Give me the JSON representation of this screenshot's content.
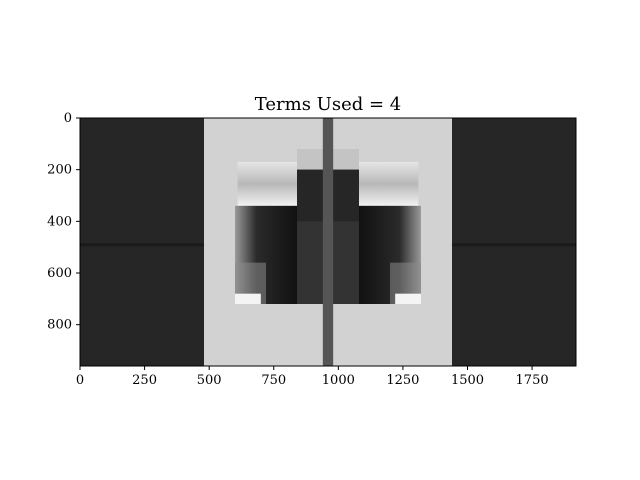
{
  "chart_data": {
    "type": "heatmap",
    "title": "Terms Used = 4",
    "xlabel": "",
    "ylabel": "",
    "xlim": [
      0,
      1920
    ],
    "ylim": [
      960,
      0
    ],
    "xticks": [
      0,
      250,
      500,
      750,
      1000,
      1250,
      1500,
      1750
    ],
    "yticks": [
      0,
      200,
      400,
      600,
      800
    ],
    "colormap": "gray",
    "grid": false,
    "regions": [
      {
        "name": "left-dark-band",
        "x": [
          0,
          480
        ],
        "y": [
          0,
          960
        ],
        "color": "#262626"
      },
      {
        "name": "right-dark-band",
        "x": [
          1440,
          1920
        ],
        "y": [
          0,
          960
        ],
        "color": "#262626"
      },
      {
        "name": "light-field",
        "x": [
          480,
          1440
        ],
        "y": [
          0,
          960
        ],
        "color": "#d2d2d2"
      },
      {
        "name": "center-dark-block",
        "x": [
          840,
          1080
        ],
        "y": [
          200,
          720
        ],
        "color": "#333333"
      },
      {
        "name": "left-dark-lobe",
        "x": [
          600,
          840
        ],
        "y": [
          340,
          720
        ],
        "color": "#1e1e1e"
      },
      {
        "name": "right-dark-lobe",
        "x": [
          1080,
          1320
        ],
        "y": [
          340,
          720
        ],
        "color": "#1e1e1e"
      },
      {
        "name": "center-vertical-stripe",
        "x": [
          940,
          980
        ],
        "y": [
          0,
          960
        ],
        "color": "#555555"
      }
    ]
  }
}
